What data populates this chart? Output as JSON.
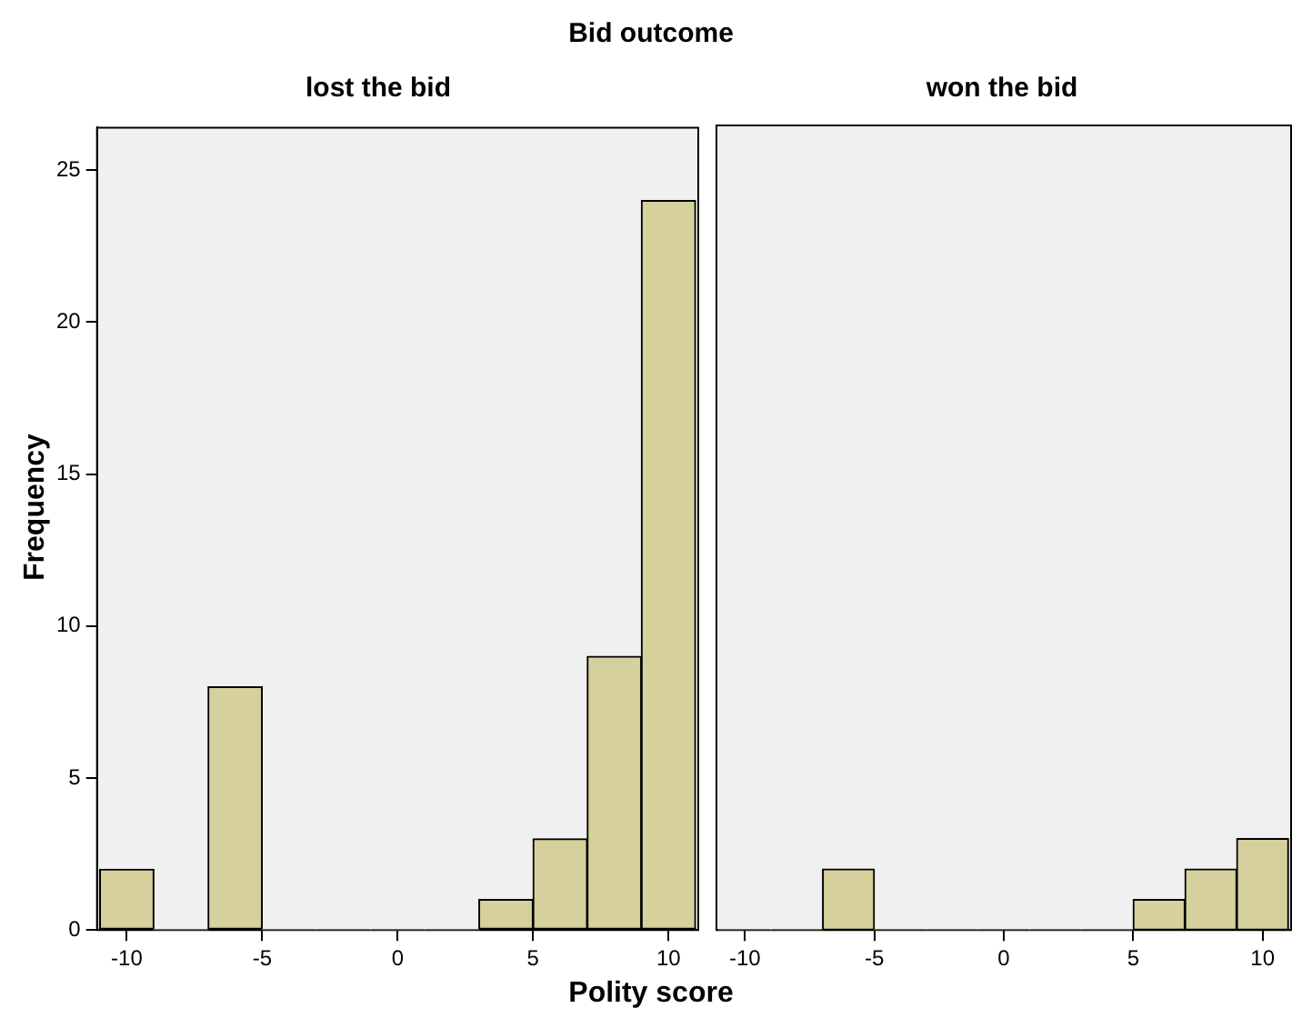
{
  "chart_data": [
    {
      "type": "histogram",
      "title": "Bid outcome",
      "subtitle": "lost the bid",
      "xlabel": "Polity score",
      "ylabel": "Frequency",
      "bins": [
        -11,
        -9,
        -7,
        -5,
        -3,
        -1,
        1,
        3,
        5,
        7,
        9,
        11
      ],
      "values": [
        2,
        0,
        8,
        0,
        0,
        0,
        0,
        1,
        3,
        9,
        24
      ],
      "color": "#d5d09c",
      "xlim": [
        -11.1,
        11.1
      ],
      "xticks": [
        -10,
        -5,
        0,
        5,
        10
      ],
      "ylim": [
        0,
        26.4
      ],
      "yticks": [
        0,
        5,
        10,
        15,
        20,
        25
      ],
      "grid": false,
      "legend": false
    },
    {
      "type": "histogram",
      "subtitle": "won the bid",
      "bins": [
        -11,
        -9,
        -7,
        -5,
        -3,
        -1,
        1,
        3,
        5,
        7,
        9,
        11
      ],
      "values": [
        0,
        0,
        2,
        0,
        0,
        0,
        0,
        0,
        1,
        2,
        3
      ],
      "color": "#d5d09c",
      "xlim": [
        -11.1,
        11.1
      ],
      "xticks": [
        -10,
        -5,
        0,
        5,
        10
      ],
      "ylim": [
        0,
        26.4
      ],
      "yticks": [
        0,
        5,
        10,
        15,
        20,
        25
      ],
      "grid": false,
      "legend": false,
      "tick_labels": "x"
    }
  ]
}
